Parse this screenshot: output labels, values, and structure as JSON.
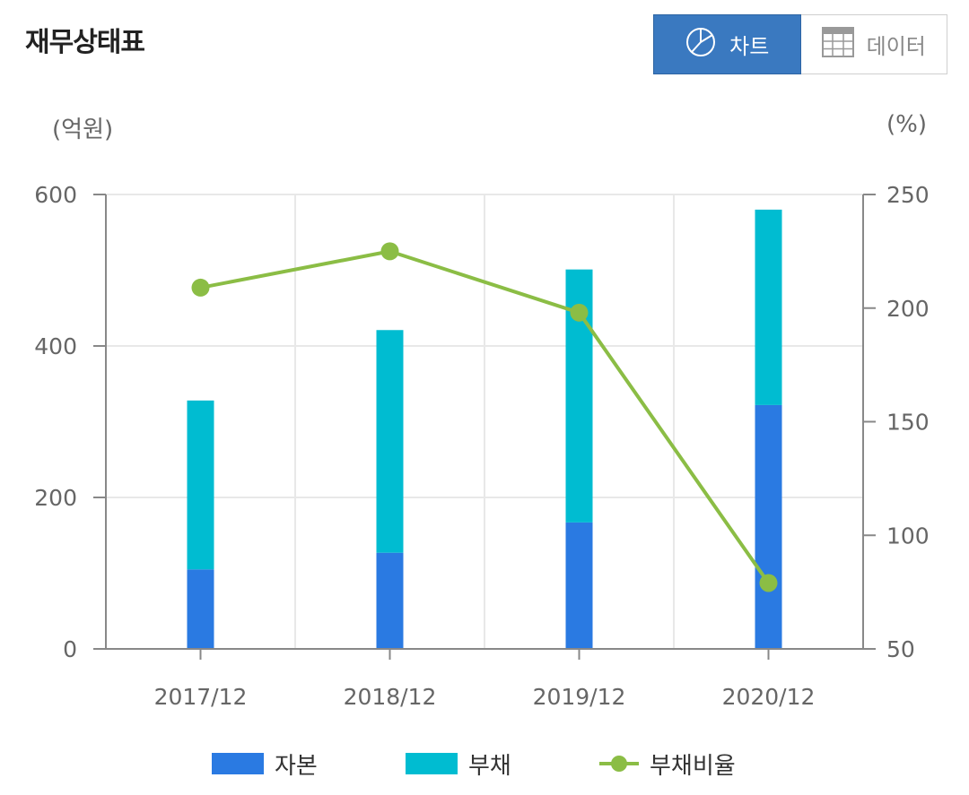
{
  "header": {
    "title": "재무상태표",
    "toggle": {
      "chart_label": "차트",
      "data_label": "데이터"
    }
  },
  "colors": {
    "equity": "#2a7ae2",
    "liabilities": "#00bcd1",
    "ratio": "#8bbd45",
    "grid": "#e8e8e8",
    "axis": "#888888",
    "active_button": "#3a79c0"
  },
  "icons": {
    "chart_toggle": "pie-chart-icon",
    "data_toggle": "table-grid-icon"
  },
  "chart_data": {
    "type": "bar",
    "stacked": true,
    "title": "",
    "categories": [
      "2017/12",
      "2018/12",
      "2019/12",
      "2020/12"
    ],
    "y_unit_label": "(억원)",
    "y2_unit_label": "(%)",
    "ylim": [
      0,
      600
    ],
    "yticks": [
      0,
      200,
      400,
      600
    ],
    "y2lim": [
      50,
      250
    ],
    "y2ticks": [
      50,
      100,
      150,
      200,
      250
    ],
    "grid": true,
    "legend_position": "bottom",
    "series": [
      {
        "name": "자본",
        "kind": "bar",
        "axis": "left",
        "values": [
          105,
          127,
          167,
          322
        ]
      },
      {
        "name": "부채",
        "kind": "bar",
        "axis": "left",
        "values": [
          223,
          294,
          334,
          258
        ]
      },
      {
        "name": "부채비율",
        "kind": "line",
        "axis": "right",
        "values": [
          209,
          225,
          198,
          79
        ]
      }
    ]
  }
}
